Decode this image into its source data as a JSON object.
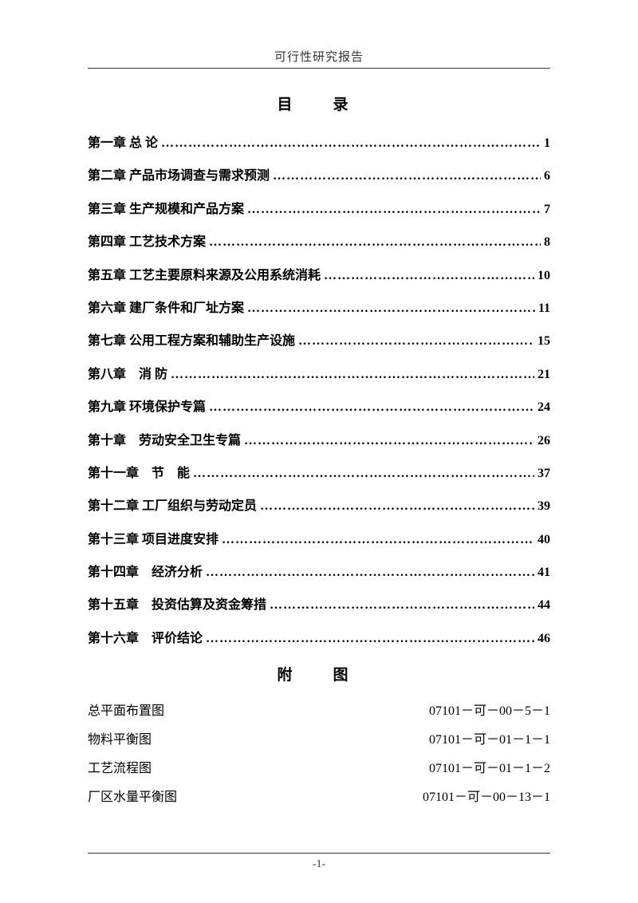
{
  "header": {
    "title": "可行性研究报告"
  },
  "toc": {
    "title": "目　录",
    "entries": [
      {
        "chapter": "第一章  总  论",
        "page": "1"
      },
      {
        "chapter": "第二章  产品市场调查与需求预测",
        "page": "6"
      },
      {
        "chapter": "第三章  生产规模和产品方案",
        "page": "7"
      },
      {
        "chapter": "第四章  工艺技术方案",
        "page": "8"
      },
      {
        "chapter": "第五章  工艺主要原料来源及公用系统消耗",
        "page": "10"
      },
      {
        "chapter": "第六章  建厂条件和厂址方案",
        "page": "11"
      },
      {
        "chapter": "第七章  公用工程方案和辅助生产设施",
        "page": "15"
      },
      {
        "chapter": "第八章　消  防",
        "page": "21"
      },
      {
        "chapter": "第九章  环境保护专篇",
        "page": "24"
      },
      {
        "chapter": "第十章　劳动安全卫生专篇",
        "page": "26"
      },
      {
        "chapter": "第十一章　节　能",
        "page": "37"
      },
      {
        "chapter": "第十二章  工厂组织与劳动定员",
        "page": "39"
      },
      {
        "chapter": "第十三章  项目进度安排",
        "page": "40"
      },
      {
        "chapter": "第十四章　经济分析",
        "page": "41"
      },
      {
        "chapter": "第十五章　投资估算及资金筹措",
        "page": "44"
      },
      {
        "chapter": "第十六章　评价结论",
        "page": "46"
      }
    ]
  },
  "appendix": {
    "title": "附　图",
    "entries": [
      {
        "name": "总平面布置图",
        "code": "07101－可－00－5－1"
      },
      {
        "name": "物料平衡图",
        "code": "07101－可－01－1－1"
      },
      {
        "name": "工艺流程图",
        "code": "07101－可－01－1－2"
      },
      {
        "name": "厂区水量平衡图",
        "code": "07101－可－00－13－1"
      }
    ]
  },
  "footer": {
    "pageNumber": "-1-"
  },
  "styling": {
    "pageWidth": 800,
    "pageHeight": 1132,
    "backgroundColor": "#ffffff",
    "textColor": "#000000",
    "headerColor": "#333333",
    "fontFamily": "SimSun",
    "tocTitleFontSize": 19,
    "tocEntryFontSize": 16,
    "headerFontSize": 15,
    "dotLeader": "…"
  }
}
